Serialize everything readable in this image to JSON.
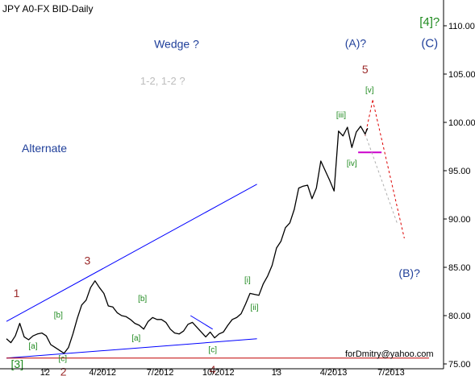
{
  "header": {
    "title": "JPY A0-FX BID-Daily"
  },
  "footer": {
    "email": "forDmitry@yahoo.com"
  },
  "chart_data": {
    "type": "line",
    "title": "JPY A0-FX BID-Daily",
    "xlabel": "",
    "ylabel": "",
    "ylim": [
      74.5,
      112
    ],
    "y_ticks": [
      75,
      80,
      85,
      90,
      95,
      100,
      105,
      110
    ],
    "y_tick_labels": [
      "75.00",
      "80.00",
      "85.00",
      "90.00",
      "95.00",
      "100.00",
      "105.00",
      "110.00"
    ],
    "x_ticks": [
      {
        "label": "12",
        "date": "2012-01-01"
      },
      {
        "label": "4/2012",
        "date": "2012-04-01"
      },
      {
        "label": "7/2012",
        "date": "2012-07-01"
      },
      {
        "label": "10/2012",
        "date": "2012-10-01"
      },
      {
        "label": "13",
        "date": "2013-01-01"
      },
      {
        "label": "4/2013",
        "date": "2013-04-01"
      },
      {
        "label": "7/2013",
        "date": "2013-07-01"
      }
    ],
    "xlim": [
      "2011-11-01",
      "2013-09-22"
    ],
    "grid": false,
    "series": [
      {
        "color": "#000000",
        "points": [
          [
            "2011-11-01",
            77.6
          ],
          [
            "2011-11-08",
            77.2
          ],
          [
            "2011-11-15",
            77.9
          ],
          [
            "2011-11-22",
            79.2
          ],
          [
            "2011-11-29",
            77.8
          ],
          [
            "2011-12-06",
            77.5
          ],
          [
            "2011-12-13",
            77.9
          ],
          [
            "2011-12-20",
            78.1
          ],
          [
            "2011-12-27",
            78.2
          ],
          [
            "2012-01-03",
            77.9
          ],
          [
            "2012-01-10",
            77.0
          ],
          [
            "2012-01-17",
            76.7
          ],
          [
            "2012-01-24",
            76.4
          ],
          [
            "2012-01-31",
            76.1
          ],
          [
            "2012-02-07",
            76.7
          ],
          [
            "2012-02-14",
            78.1
          ],
          [
            "2012-02-21",
            79.7
          ],
          [
            "2012-02-28",
            81.1
          ],
          [
            "2012-03-06",
            81.6
          ],
          [
            "2012-03-13",
            82.9
          ],
          [
            "2012-03-20",
            83.6
          ],
          [
            "2012-03-27",
            82.9
          ],
          [
            "2012-04-03",
            82.3
          ],
          [
            "2012-04-10",
            81.0
          ],
          [
            "2012-04-17",
            80.9
          ],
          [
            "2012-04-24",
            80.3
          ],
          [
            "2012-05-01",
            80.0
          ],
          [
            "2012-05-08",
            79.9
          ],
          [
            "2012-05-15",
            79.6
          ],
          [
            "2012-05-22",
            79.2
          ],
          [
            "2012-05-29",
            79.0
          ],
          [
            "2012-06-05",
            78.6
          ],
          [
            "2012-06-12",
            79.4
          ],
          [
            "2012-06-19",
            79.8
          ],
          [
            "2012-06-26",
            79.6
          ],
          [
            "2012-07-03",
            79.6
          ],
          [
            "2012-07-10",
            79.3
          ],
          [
            "2012-07-17",
            78.6
          ],
          [
            "2012-07-24",
            78.2
          ],
          [
            "2012-07-31",
            78.1
          ],
          [
            "2012-08-07",
            78.4
          ],
          [
            "2012-08-14",
            79.1
          ],
          [
            "2012-08-21",
            79.3
          ],
          [
            "2012-08-28",
            78.8
          ],
          [
            "2012-09-04",
            78.3
          ],
          [
            "2012-09-11",
            77.8
          ],
          [
            "2012-09-18",
            78.3
          ],
          [
            "2012-09-25",
            77.7
          ],
          [
            "2012-10-02",
            78.1
          ],
          [
            "2012-10-09",
            78.3
          ],
          [
            "2012-10-16",
            79.0
          ],
          [
            "2012-10-23",
            79.6
          ],
          [
            "2012-10-30",
            79.8
          ],
          [
            "2012-11-06",
            80.2
          ],
          [
            "2012-11-13",
            81.2
          ],
          [
            "2012-11-20",
            82.3
          ],
          [
            "2012-11-27",
            82.2
          ],
          [
            "2012-12-04",
            82.1
          ],
          [
            "2012-12-11",
            83.3
          ],
          [
            "2012-12-18",
            84.1
          ],
          [
            "2012-12-25",
            85.2
          ],
          [
            "2013-01-01",
            87.0
          ],
          [
            "2013-01-08",
            87.7
          ],
          [
            "2013-01-15",
            89.1
          ],
          [
            "2013-01-22",
            89.6
          ],
          [
            "2013-01-29",
            91.0
          ],
          [
            "2013-02-05",
            93.2
          ],
          [
            "2013-02-12",
            93.4
          ],
          [
            "2013-02-19",
            93.5
          ],
          [
            "2013-02-26",
            92.1
          ],
          [
            "2013-03-05",
            93.2
          ],
          [
            "2013-03-12",
            96.0
          ],
          [
            "2013-03-19",
            95.0
          ],
          [
            "2013-03-26",
            94.0
          ],
          [
            "2013-04-02",
            92.9
          ],
          [
            "2013-04-09",
            99.1
          ],
          [
            "2013-04-16",
            98.6
          ],
          [
            "2013-04-23",
            99.5
          ],
          [
            "2013-04-30",
            97.4
          ],
          [
            "2013-05-07",
            99.0
          ],
          [
            "2013-05-14",
            99.6
          ],
          [
            "2013-05-21",
            98.8
          ],
          [
            "2013-05-25",
            99.4
          ]
        ]
      }
    ],
    "lines": [
      {
        "name": "upper-wedge-line",
        "color": "#0000ff",
        "style": "solid",
        "from": [
          "2011-11-01",
          79.4
        ],
        "to": [
          "2012-12-01",
          93.6
        ]
      },
      {
        "name": "lower-wedge-line",
        "color": "#0000ff",
        "style": "solid",
        "from": [
          "2011-11-01",
          75.6
        ],
        "to": [
          "2012-12-01",
          77.6
        ]
      },
      {
        "name": "small-trend-line",
        "color": "#0000ff",
        "style": "solid",
        "from": [
          "2012-08-18",
          80.0
        ],
        "to": [
          "2012-09-22",
          78.6
        ]
      },
      {
        "name": "horizontal-red-line",
        "color": "#c00000",
        "style": "solid",
        "from": [
          "2011-11-01",
          75.6
        ],
        "to": [
          "2013-08-30",
          75.6
        ]
      },
      {
        "name": "magenta-level-line",
        "color": "#cc00cc",
        "style": "solid",
        "from": [
          "2013-05-10",
          96.9
        ],
        "to": [
          "2013-06-16",
          96.9
        ]
      },
      {
        "name": "red-projection-up",
        "color": "#dd0000",
        "style": "dashed",
        "from": [
          "2013-05-21",
          98.6
        ],
        "to": [
          "2013-06-02",
          102.3
        ]
      },
      {
        "name": "red-projection-down",
        "color": "#dd0000",
        "style": "dashed",
        "from": [
          "2013-06-02",
          102.3
        ],
        "to": [
          "2013-07-22",
          88.0
        ]
      },
      {
        "name": "gray-projection-down",
        "color": "#b0b0b0",
        "style": "dashed",
        "from": [
          "2013-05-21",
          98.8
        ],
        "to": [
          "2013-07-11",
          89.5
        ]
      }
    ],
    "annotations": [
      {
        "text": "Wedge ?",
        "color": "#1f3f9a",
        "size": 14,
        "x": "2012-07-27",
        "y": 107.7
      },
      {
        "text": "1-2, 1-2 ?",
        "color": "#bdbdbd",
        "size": 13,
        "x": "2012-07-05",
        "y": 103.9
      },
      {
        "text": "Alternate",
        "color": "#1f3f9a",
        "size": 14,
        "x": "2011-12-31",
        "y": 96.9
      },
      {
        "text": "(A)?",
        "color": "#1f3f9a",
        "size": 14,
        "x": "2013-05-06",
        "y": 107.8
      },
      {
        "text": "5",
        "color": "#9b2a2a",
        "size": 14,
        "x": "2013-05-21",
        "y": 105.1
      },
      {
        "text": "[v]",
        "color": "#1f8a1f",
        "size": 10,
        "x": "2013-05-28",
        "y": 103.1
      },
      {
        "text": "[iii]",
        "color": "#1f8a1f",
        "size": 10,
        "x": "2013-04-13",
        "y": 100.5
      },
      {
        "text": "[iv]",
        "color": "#1f8a1f",
        "size": 10,
        "x": "2013-04-30",
        "y": 95.5
      },
      {
        "text": "[4]?",
        "color": "#1f8a1f",
        "size": 15,
        "x": "2013-08-31",
        "y": 110.0
      },
      {
        "text": "(C)",
        "color": "#1f3f9a",
        "size": 15,
        "x": "2013-08-31",
        "y": 107.8
      },
      {
        "text": "(B)?",
        "color": "#1f3f9a",
        "size": 14,
        "x": "2013-07-30",
        "y": 84.0
      },
      {
        "text": "1",
        "color": "#9b2a2a",
        "size": 14,
        "x": "2011-11-17",
        "y": 81.9
      },
      {
        "text": "[3]",
        "color": "#1f8a1f",
        "size": 14,
        "x": "2011-11-18",
        "y": 74.6
      },
      {
        "text": "[a]",
        "color": "#1f8a1f",
        "size": 10,
        "x": "2011-12-13",
        "y": 76.6
      },
      {
        "text": "[b]",
        "color": "#1f8a1f",
        "size": 10,
        "x": "2012-01-22",
        "y": 79.8
      },
      {
        "text": "[c]",
        "color": "#1f8a1f",
        "size": 10,
        "x": "2012-01-29",
        "y": 75.3
      },
      {
        "text": "2",
        "color": "#9b2a2a",
        "size": 14,
        "x": "2012-01-30",
        "y": 73.8
      },
      {
        "text": "3",
        "color": "#9b2a2a",
        "size": 14,
        "x": "2012-03-08",
        "y": 85.3
      },
      {
        "text": "[b]",
        "color": "#1f8a1f",
        "size": 10,
        "x": "2012-06-03",
        "y": 81.5
      },
      {
        "text": "[a]",
        "color": "#1f8a1f",
        "size": 10,
        "x": "2012-05-24",
        "y": 77.4
      },
      {
        "text": "[c]",
        "color": "#1f8a1f",
        "size": 10,
        "x": "2012-09-22",
        "y": 76.2
      },
      {
        "text": "4",
        "color": "#9b2a2a",
        "size": 14,
        "x": "2012-09-22",
        "y": 74.0
      },
      {
        "text": "[i]",
        "color": "#1f8a1f",
        "size": 10,
        "x": "2012-11-16",
        "y": 83.4
      },
      {
        "text": "[ii]",
        "color": "#1f8a1f",
        "size": 10,
        "x": "2012-11-27",
        "y": 80.6
      }
    ]
  }
}
